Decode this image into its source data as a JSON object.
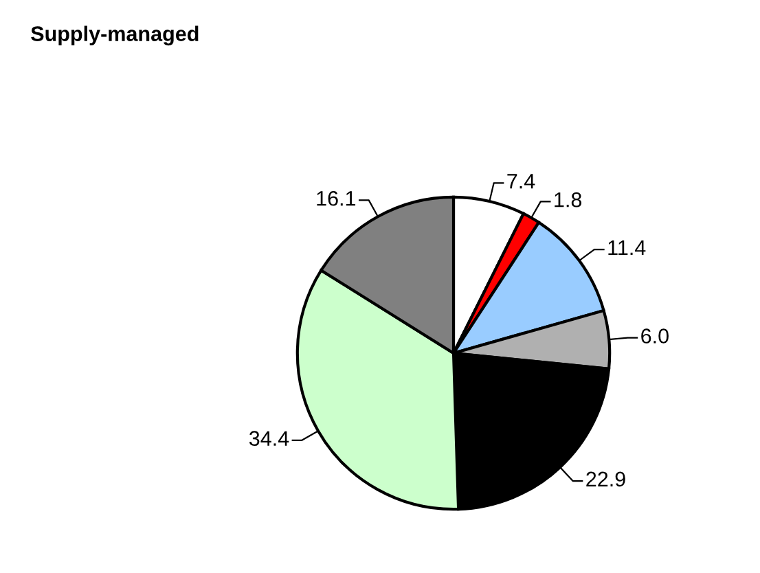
{
  "chart_data": {
    "type": "pie",
    "title": "Supply-managed",
    "categories": [
      null,
      null,
      null,
      null,
      null,
      null,
      null
    ],
    "values": [
      7.4,
      1.8,
      11.4,
      6.0,
      22.9,
      34.4,
      16.1
    ],
    "value_labels": [
      "7.4",
      "1.8",
      "11.4",
      "6.0",
      "22.9",
      "34.4",
      "16.1"
    ],
    "colors": [
      "#ffffff",
      "#ff0000",
      "#99ccff",
      "#b0b0b0",
      "#000000",
      "#ccffcc",
      "#808080"
    ]
  }
}
